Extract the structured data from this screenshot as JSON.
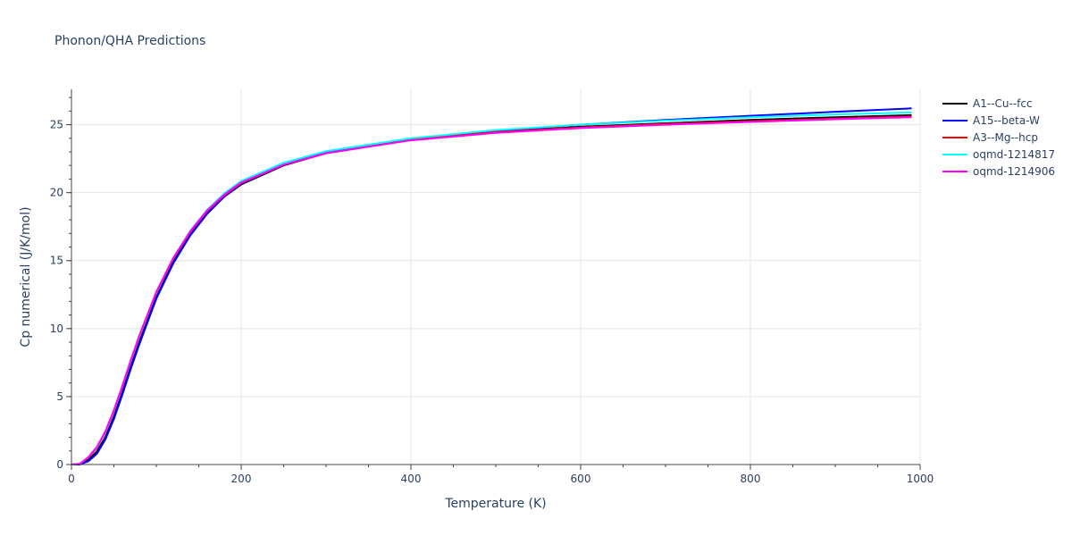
{
  "chart_data": {
    "type": "line",
    "title": "Phonon/QHA Predictions",
    "xlabel": "Temperature (K)",
    "ylabel": "Cp numerical (J/K/mol)",
    "xlim": [
      0,
      1000
    ],
    "ylim": [
      0,
      27.6
    ],
    "x_ticks": [
      0,
      200,
      400,
      600,
      800,
      1000
    ],
    "y_ticks": [
      0,
      5,
      10,
      15,
      20,
      25
    ],
    "x_minor_step": 50,
    "y_minor_step": 1,
    "grid": true,
    "legend_position": "right",
    "series": [
      {
        "name": "A1--Cu--fcc",
        "color": "#000000",
        "x": [
          0,
          10,
          20,
          30,
          40,
          50,
          60,
          70,
          80,
          100,
          120,
          140,
          160,
          180,
          200,
          250,
          300,
          400,
          500,
          600,
          700,
          800,
          900,
          990
        ],
        "y": [
          0,
          0.02,
          0.35,
          0.95,
          2.0,
          3.5,
          5.3,
          7.2,
          9.0,
          12.3,
          14.9,
          16.9,
          18.5,
          19.7,
          20.6,
          22.0,
          22.9,
          23.9,
          24.45,
          24.85,
          25.1,
          25.35,
          25.55,
          25.7
        ]
      },
      {
        "name": "A15--beta-W",
        "color": "#0000ff",
        "x": [
          0,
          10,
          20,
          30,
          40,
          50,
          60,
          70,
          80,
          100,
          120,
          140,
          160,
          180,
          200,
          250,
          300,
          400,
          500,
          600,
          700,
          800,
          900,
          990
        ],
        "y": [
          0,
          0.0,
          0.25,
          0.8,
          1.85,
          3.35,
          5.15,
          7.05,
          8.85,
          12.2,
          14.8,
          16.85,
          18.45,
          19.7,
          20.65,
          22.05,
          22.95,
          23.95,
          24.55,
          25.0,
          25.35,
          25.65,
          25.95,
          26.2
        ]
      },
      {
        "name": "A3--Mg--hcp",
        "color": "#ff0000",
        "x": [
          0,
          10,
          20,
          30,
          40,
          50,
          60,
          70,
          80,
          100,
          120,
          140,
          160,
          180,
          200,
          250,
          300,
          400,
          500,
          600,
          700,
          800,
          900,
          990
        ],
        "y": [
          0,
          0.05,
          0.5,
          1.2,
          2.35,
          3.9,
          5.7,
          7.6,
          9.4,
          12.65,
          15.15,
          17.1,
          18.65,
          19.8,
          20.7,
          22.05,
          22.9,
          23.9,
          24.45,
          24.8,
          25.05,
          25.25,
          25.45,
          25.6
        ]
      },
      {
        "name": "oqmd-1214817",
        "color": "#00ffff",
        "x": [
          0,
          10,
          20,
          30,
          40,
          50,
          60,
          70,
          80,
          100,
          120,
          140,
          160,
          180,
          200,
          250,
          300,
          400,
          500,
          600,
          700,
          800,
          900,
          990
        ],
        "y": [
          0,
          0.05,
          0.55,
          1.25,
          2.4,
          3.95,
          5.75,
          7.65,
          9.45,
          12.7,
          15.2,
          17.2,
          18.75,
          19.95,
          20.85,
          22.2,
          23.05,
          24.0,
          24.6,
          25.0,
          25.3,
          25.55,
          25.75,
          25.9
        ]
      },
      {
        "name": "oqmd-1214906",
        "color": "#ff00ff",
        "x": [
          0,
          10,
          20,
          30,
          40,
          50,
          60,
          70,
          80,
          100,
          120,
          140,
          160,
          180,
          200,
          250,
          300,
          400,
          500,
          600,
          700,
          800,
          900,
          990
        ],
        "y": [
          0,
          0.06,
          0.55,
          1.3,
          2.45,
          4.0,
          5.8,
          7.7,
          9.5,
          12.7,
          15.2,
          17.15,
          18.7,
          19.85,
          20.75,
          22.05,
          22.9,
          23.85,
          24.4,
          24.75,
          25.0,
          25.2,
          25.4,
          25.55
        ]
      }
    ]
  }
}
